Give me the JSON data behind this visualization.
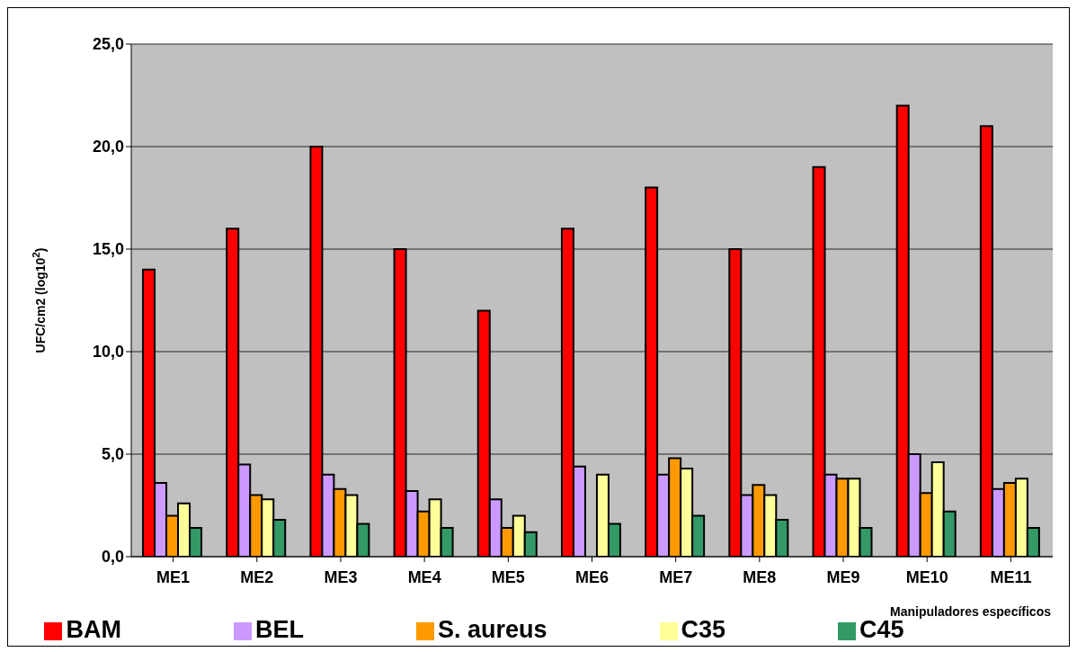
{
  "chart_data": {
    "type": "bar",
    "xlabel": "Manipuladores específicos",
    "ylabel": "UFC/cm2 (log10$^{2}$)",
    "categories": [
      "ME1",
      "ME2",
      "ME3",
      "ME4",
      "ME5",
      "ME6",
      "ME7",
      "ME8",
      "ME9",
      "ME10",
      "ME11"
    ],
    "series": [
      {
        "name": "BAM",
        "color": "#ff0000",
        "values": [
          14,
          16,
          20,
          15,
          12,
          16,
          18,
          15,
          19,
          22,
          21
        ]
      },
      {
        "name": "BEL",
        "color": "#cc99ff",
        "values": [
          3.6,
          4.5,
          4.0,
          3.2,
          2.8,
          4.4,
          4.0,
          3.0,
          4.0,
          5.0,
          3.3
        ]
      },
      {
        "name": "S. aureus",
        "color": "#ff9900",
        "values": [
          2.0,
          3.0,
          3.3,
          2.2,
          1.4,
          null,
          4.8,
          3.5,
          3.8,
          3.1,
          3.6
        ]
      },
      {
        "name": "C35",
        "color": "#ffff99",
        "values": [
          2.6,
          2.8,
          3.0,
          2.8,
          2.0,
          4.0,
          4.3,
          3.0,
          3.8,
          4.6,
          3.8
        ]
      },
      {
        "name": "C45",
        "color": "#339966",
        "values": [
          1.4,
          1.8,
          1.6,
          1.4,
          1.2,
          1.6,
          2.0,
          1.8,
          1.4,
          2.2,
          1.4
        ]
      }
    ],
    "ylim": [
      0,
      25
    ],
    "yticks": [
      {
        "value": 0,
        "label": "0,0"
      },
      {
        "value": 5,
        "label": "5,0"
      },
      {
        "value": 10,
        "label": "10,0"
      },
      {
        "value": 15,
        "label": "15,0"
      },
      {
        "value": 20,
        "label": "20,0"
      },
      {
        "value": 25,
        "label": "25,0"
      }
    ],
    "grid": "y",
    "legend": "bottom"
  }
}
